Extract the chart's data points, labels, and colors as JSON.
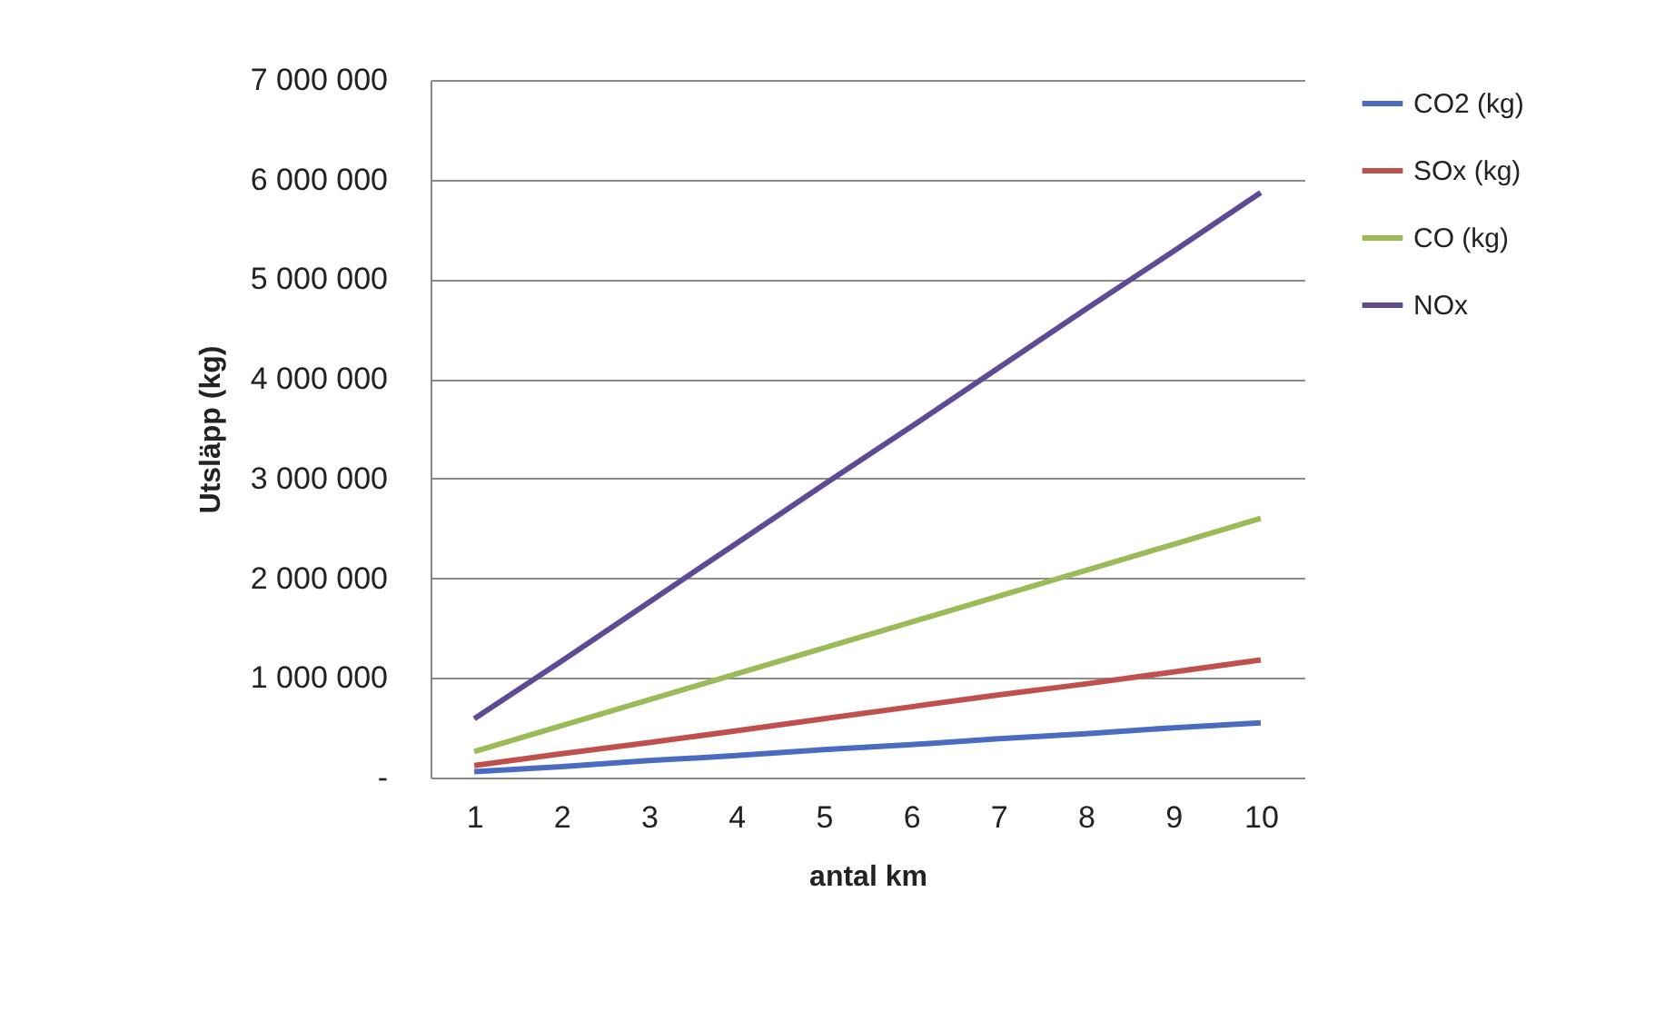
{
  "chart_data": {
    "type": "line",
    "xlabel": "antal km",
    "ylabel": "Utsläpp (kg)",
    "categories": [
      "1",
      "2",
      "3",
      "4",
      "5",
      "6",
      "7",
      "8",
      "9",
      "10"
    ],
    "series": [
      {
        "name": "CO2 (kg)",
        "color": "#4a6cc0",
        "values": [
          60000,
          110000,
          170000,
          220000,
          280000,
          330000,
          390000,
          440000,
          500000,
          550000
        ]
      },
      {
        "name": "SOx (kg)",
        "color": "#c0504d",
        "values": [
          120000,
          240000,
          350000,
          470000,
          590000,
          710000,
          830000,
          940000,
          1060000,
          1180000
        ]
      },
      {
        "name": "CO (kg)",
        "color": "#9bbb59",
        "values": [
          260000,
          520000,
          780000,
          1040000,
          1300000,
          1560000,
          1820000,
          2080000,
          2340000,
          2600000
        ]
      },
      {
        "name": "NOx",
        "color": "#5f4a96",
        "values": [
          590000,
          1170000,
          1760000,
          2350000,
          2940000,
          3520000,
          4110000,
          4700000,
          5280000,
          5870000
        ]
      }
    ],
    "ylim": [
      0,
      7000000
    ],
    "yticks": [
      {
        "value": 0,
        "label": "-"
      },
      {
        "value": 1000000,
        "label": "1 000 000"
      },
      {
        "value": 2000000,
        "label": "2 000 000"
      },
      {
        "value": 3000000,
        "label": "3 000 000"
      },
      {
        "value": 4000000,
        "label": "4 000 000"
      },
      {
        "value": 5000000,
        "label": "5 000 000"
      },
      {
        "value": 6000000,
        "label": "6 000 000"
      },
      {
        "value": 7000000,
        "label": "7 000 000"
      }
    ],
    "grid": "y",
    "legend": "right",
    "marker": "none",
    "line_style": "solid"
  }
}
